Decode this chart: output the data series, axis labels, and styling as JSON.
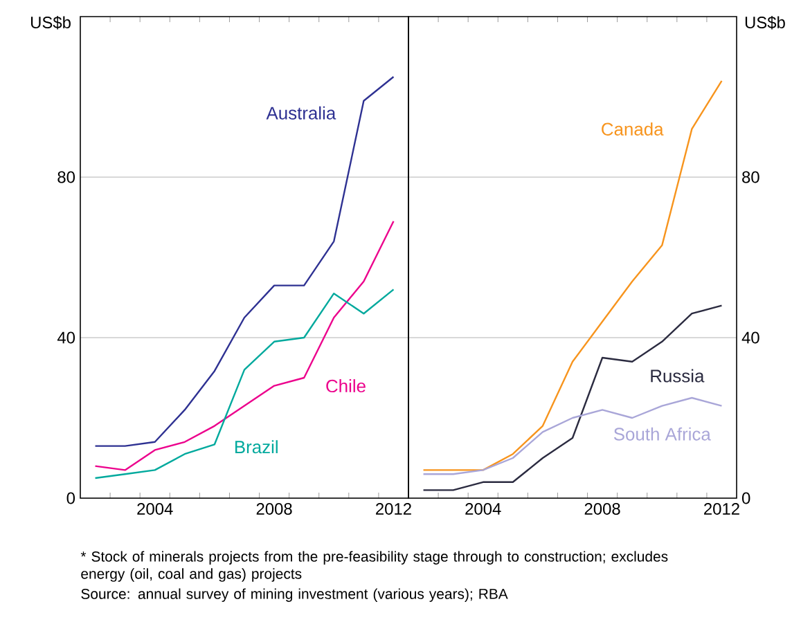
{
  "chart_data": [
    {
      "type": "line",
      "ylabel": "US$b",
      "x": [
        2002,
        2003,
        2004,
        2005,
        2006,
        2007,
        2008,
        2009,
        2010,
        2011,
        2012
      ],
      "xlim": [
        2001.5,
        2012.5
      ],
      "xticks": [
        {
          "value": 2002.5,
          "label": null
        },
        {
          "value": 2003.5,
          "label": null
        },
        {
          "value": 2004,
          "label": "2004"
        },
        {
          "value": 2004.5,
          "label": null
        },
        {
          "value": 2005.5,
          "label": null
        },
        {
          "value": 2006.5,
          "label": null
        },
        {
          "value": 2007.5,
          "label": null
        },
        {
          "value": 2008,
          "label": "2008"
        },
        {
          "value": 2008.5,
          "label": null
        },
        {
          "value": 2009.5,
          "label": null
        },
        {
          "value": 2010.5,
          "label": null
        },
        {
          "value": 2011.5,
          "label": null
        },
        {
          "value": 2012,
          "label": "2012"
        }
      ],
      "ylim": [
        0,
        120
      ],
      "yticks": [
        0,
        40,
        80
      ],
      "grid": "y",
      "legend": false,
      "series": [
        {
          "name": "Australia",
          "color": "#2e3192",
          "values": [
            13,
            13,
            14,
            22,
            31.7,
            45,
            53,
            53,
            64,
            99,
            105
          ]
        },
        {
          "name": "Chile",
          "color": "#ec008c",
          "values": [
            8,
            7,
            12,
            14,
            18,
            23,
            28,
            30,
            45,
            54,
            69
          ]
        },
        {
          "name": "Brazil",
          "color": "#00a99d",
          "values": [
            5,
            6,
            7,
            11,
            13.4,
            32,
            39,
            40,
            51,
            46,
            52
          ]
        }
      ],
      "annotations": [
        "* Stock of minerals projects from the pre-feasibility stage through to construction; excludes energy (oil, coal and gas) projects",
        "Source: annual survey of mining investment (various years); RBA"
      ]
    },
    {
      "type": "line",
      "ylabel": "US$b",
      "x": [
        2002,
        2003,
        2004,
        2005,
        2006,
        2007,
        2008,
        2009,
        2010,
        2011,
        2012
      ],
      "xlim": [
        2001.5,
        2012.5
      ],
      "xticks": [
        {
          "value": 2002.5,
          "label": null
        },
        {
          "value": 2003.5,
          "label": null
        },
        {
          "value": 2004,
          "label": "2004"
        },
        {
          "value": 2004.5,
          "label": null
        },
        {
          "value": 2005.5,
          "label": null
        },
        {
          "value": 2006.5,
          "label": null
        },
        {
          "value": 2007.5,
          "label": null
        },
        {
          "value": 2008,
          "label": "2008"
        },
        {
          "value": 2008.5,
          "label": null
        },
        {
          "value": 2009.5,
          "label": null
        },
        {
          "value": 2010.5,
          "label": null
        },
        {
          "value": 2011.5,
          "label": null
        },
        {
          "value": 2012,
          "label": "2012"
        }
      ],
      "ylim": [
        0,
        120
      ],
      "yticks": [
        0,
        40,
        80
      ],
      "grid": "y",
      "legend": false,
      "series": [
        {
          "name": "Canada",
          "color": "#f7941d",
          "values": [
            7,
            7,
            7,
            11,
            18,
            34,
            44,
            54,
            63,
            92,
            104
          ]
        },
        {
          "name": "Russia",
          "color": "#2b2b40",
          "values": [
            2,
            2,
            4,
            4,
            10,
            15,
            35,
            34,
            39,
            46,
            48
          ]
        },
        {
          "name": "South Africa",
          "color": "#a9a6d8",
          "values": [
            6,
            6,
            7,
            10,
            16.5,
            20,
            22,
            20,
            23,
            25,
            23
          ]
        }
      ]
    }
  ]
}
